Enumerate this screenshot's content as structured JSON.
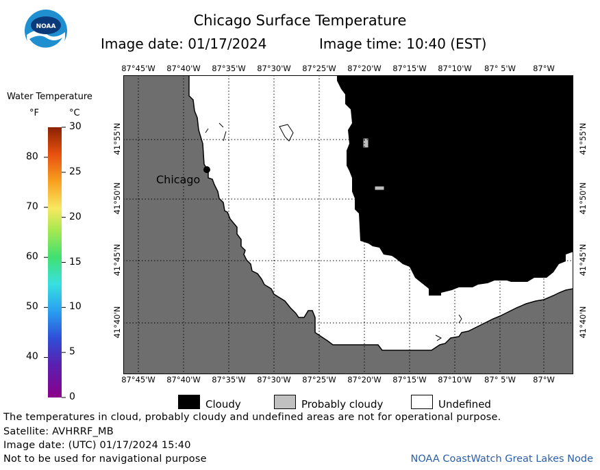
{
  "header": {
    "title": "Chicago Surface Temperature",
    "image_date": "Image date: 01/17/2024",
    "image_time": "Image time: 10:40 (EST)"
  },
  "logo": {
    "text": "NOAA"
  },
  "map": {
    "lon_labels": [
      "87°45'W",
      "87°40'W",
      "87°35'W",
      "87°30'W",
      "87°25'W",
      "87°20'W",
      "87°15'W",
      "87°10'W",
      "87° 5'W",
      "87°W"
    ],
    "lat_labels": [
      "41°55'N",
      "41°50'N",
      "41°45'N",
      "41°40'N"
    ],
    "city_label": "Chicago",
    "colors": {
      "land": "#6e6e6e",
      "cloudy": "#000000",
      "undefined": "#ffffff",
      "probably_cloudy": "#bebebe"
    }
  },
  "colorbar": {
    "title": "Water Temperature",
    "unit_f": "°F",
    "unit_c": "°C",
    "f_ticks": [
      "80",
      "70",
      "60",
      "50",
      "40"
    ],
    "c_ticks": [
      "30",
      "25",
      "20",
      "15",
      "10",
      "5",
      "0"
    ]
  },
  "legend": {
    "items": [
      {
        "label": "Cloudy",
        "color": "#000000"
      },
      {
        "label": "Probably cloudy",
        "color": "#c0c0c0"
      },
      {
        "label": "Undefined",
        "color": "#ffffff"
      }
    ]
  },
  "footer": {
    "disclaimer": "The temperatures in cloud, probably cloudy and undefined areas are not for operational purpose.",
    "satellite": "Satellite: AVHRRF_MB",
    "utc_date": "Image date: (UTC) 01/17/2024  15:40",
    "nav_warning": "Not to be used for navigational purpose",
    "credit": "NOAA CoastWatch Great Lakes Node"
  }
}
